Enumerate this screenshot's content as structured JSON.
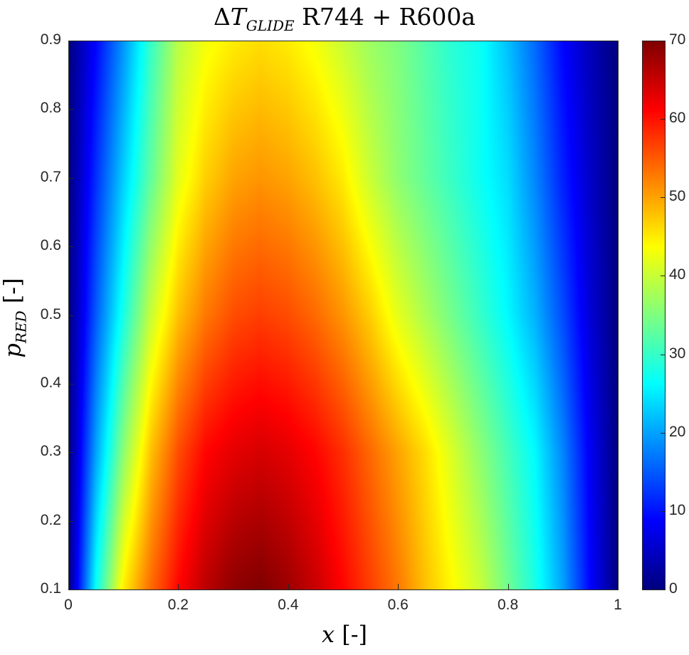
{
  "chart_data": {
    "type": "heatmap",
    "title": {
      "delta": "Δ",
      "var": "T",
      "sub": "GLIDE",
      "rest": " R744 + R600a"
    },
    "xlabel": {
      "var": "x",
      "unit": " [-]"
    },
    "ylabel": {
      "var": "p",
      "sub": "RED",
      "unit": " [-]"
    },
    "xlim": [
      0,
      1
    ],
    "ylim": [
      0.1,
      0.9
    ],
    "xticks": [
      0,
      0.2,
      0.4,
      0.6,
      0.8,
      1
    ],
    "xtick_labels": [
      "0",
      "0.2",
      "0.4",
      "0.6",
      "0.8",
      "1"
    ],
    "yticks": [
      0.1,
      0.2,
      0.3,
      0.4,
      0.5,
      0.6,
      0.7,
      0.8,
      0.9
    ],
    "ytick_labels": [
      "0.1",
      "0.2",
      "0.3",
      "0.4",
      "0.5",
      "0.6",
      "0.7",
      "0.8",
      "0.9"
    ],
    "colormap": "jet",
    "clim": [
      0,
      70
    ],
    "colorbar_ticks": [
      0,
      10,
      20,
      30,
      40,
      50,
      60,
      70
    ],
    "colorbar_tick_labels": [
      "0",
      "10",
      "20",
      "30",
      "40",
      "50",
      "60",
      "70"
    ],
    "x": [
      0,
      0.05,
      0.1,
      0.15,
      0.2,
      0.25,
      0.3,
      0.35,
      0.4,
      0.45,
      0.5,
      0.55,
      0.6,
      0.65,
      0.7,
      0.75,
      0.8,
      0.85,
      0.9,
      0.95,
      1
    ],
    "y": [
      0.1,
      0.3,
      0.5,
      0.7,
      0.9
    ],
    "z": [
      [
        0,
        27,
        45,
        54,
        61,
        66,
        69,
        70,
        68,
        65,
        61,
        57,
        53,
        48,
        44,
        40,
        34,
        28,
        20,
        9,
        0
      ],
      [
        0,
        20,
        36,
        48,
        56,
        61,
        63,
        64,
        63,
        61,
        58,
        54,
        50,
        46,
        41,
        36,
        31,
        26,
        18,
        8,
        0
      ],
      [
        0,
        15,
        28,
        40,
        48,
        53,
        56,
        57,
        56,
        54,
        51,
        47,
        42,
        38,
        34,
        30,
        26,
        21,
        14,
        6,
        0
      ],
      [
        0,
        12,
        23,
        33,
        42,
        47,
        50,
        51,
        50,
        48,
        45,
        40,
        36,
        33,
        30,
        27,
        24,
        18,
        11,
        5,
        0
      ],
      [
        0,
        9,
        19,
        30,
        39,
        43,
        45,
        46,
        45,
        43,
        40,
        37,
        35,
        32,
        29,
        27,
        22,
        16,
        9,
        4,
        0
      ]
    ],
    "grid": false,
    "colorbar": "right"
  }
}
